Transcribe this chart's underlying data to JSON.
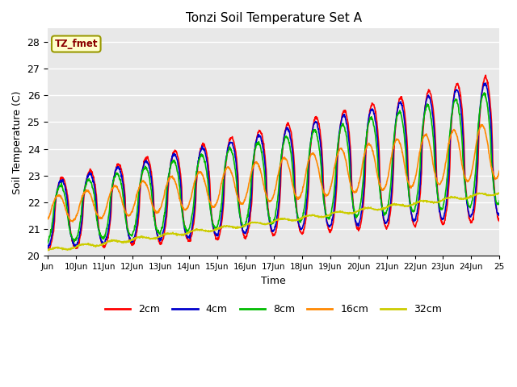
{
  "title": "Tonzi Soil Temperature Set A",
  "xlabel": "Time",
  "ylabel": "Soil Temperature (C)",
  "ylim": [
    20.0,
    28.5
  ],
  "yticks": [
    20.0,
    21.0,
    22.0,
    23.0,
    24.0,
    25.0,
    26.0,
    27.0,
    28.0
  ],
  "bg_color": "#e8e8e8",
  "legend_label": "TZ_fmet",
  "series_colors": [
    "#ff0000",
    "#0000cc",
    "#00bb00",
    "#ff8800",
    "#cccc00"
  ],
  "series_labels": [
    "2cm",
    "4cm",
    "8cm",
    "16cm",
    "32cm"
  ],
  "n_days": 16,
  "start_day": 9,
  "points_per_day": 96,
  "xtick_labels": [
    "Jun",
    "10Jun",
    "11Jun",
    "12Jun",
    "13Jun",
    "14Jun",
    "15Jun",
    "16Jun",
    "17Jun",
    "18Jun",
    "19Jun",
    "20Jun",
    "21Jun",
    "22Jun",
    "23Jun",
    "24Jun",
    "25"
  ]
}
